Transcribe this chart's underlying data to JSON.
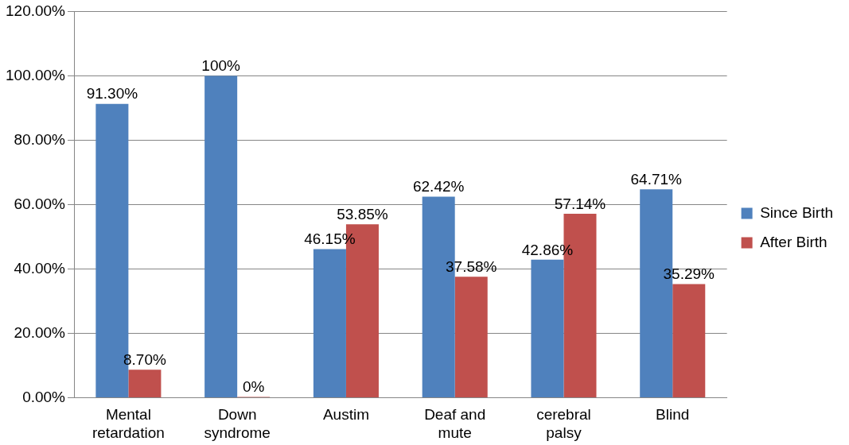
{
  "chart_data": {
    "type": "bar",
    "categories": [
      "Mental retardation",
      "Down syndrome",
      "Austim",
      "Deaf and mute",
      "cerebral palsy",
      "Blind"
    ],
    "series": [
      {
        "name": "Since Birth",
        "color": "#4f81bd",
        "values": [
          91.3,
          100,
          46.15,
          62.42,
          42.86,
          64.71
        ],
        "value_labels": [
          "91.30%",
          "100%",
          "46.15%",
          "62.42%",
          "42.86%",
          "64.71%"
        ]
      },
      {
        "name": "After Birth",
        "color": "#c0504d",
        "values": [
          8.7,
          0,
          53.85,
          37.58,
          57.14,
          35.29
        ],
        "value_labels": [
          "8.70%",
          "0%",
          "53.85%",
          "37.58%",
          "57.14%",
          "35.29%"
        ]
      }
    ],
    "ylim": [
      0,
      120
    ],
    "yticks": [
      {
        "value": 0,
        "label": "0.00%"
      },
      {
        "value": 20,
        "label": "20.00%"
      },
      {
        "value": 40,
        "label": "40.00%"
      },
      {
        "value": 60,
        "label": "60.00%"
      },
      {
        "value": 80,
        "label": "80.00%"
      },
      {
        "value": 100,
        "label": "100.00%"
      },
      {
        "value": 120,
        "label": "120.00%"
      }
    ],
    "grid": "y",
    "legend": "right"
  }
}
